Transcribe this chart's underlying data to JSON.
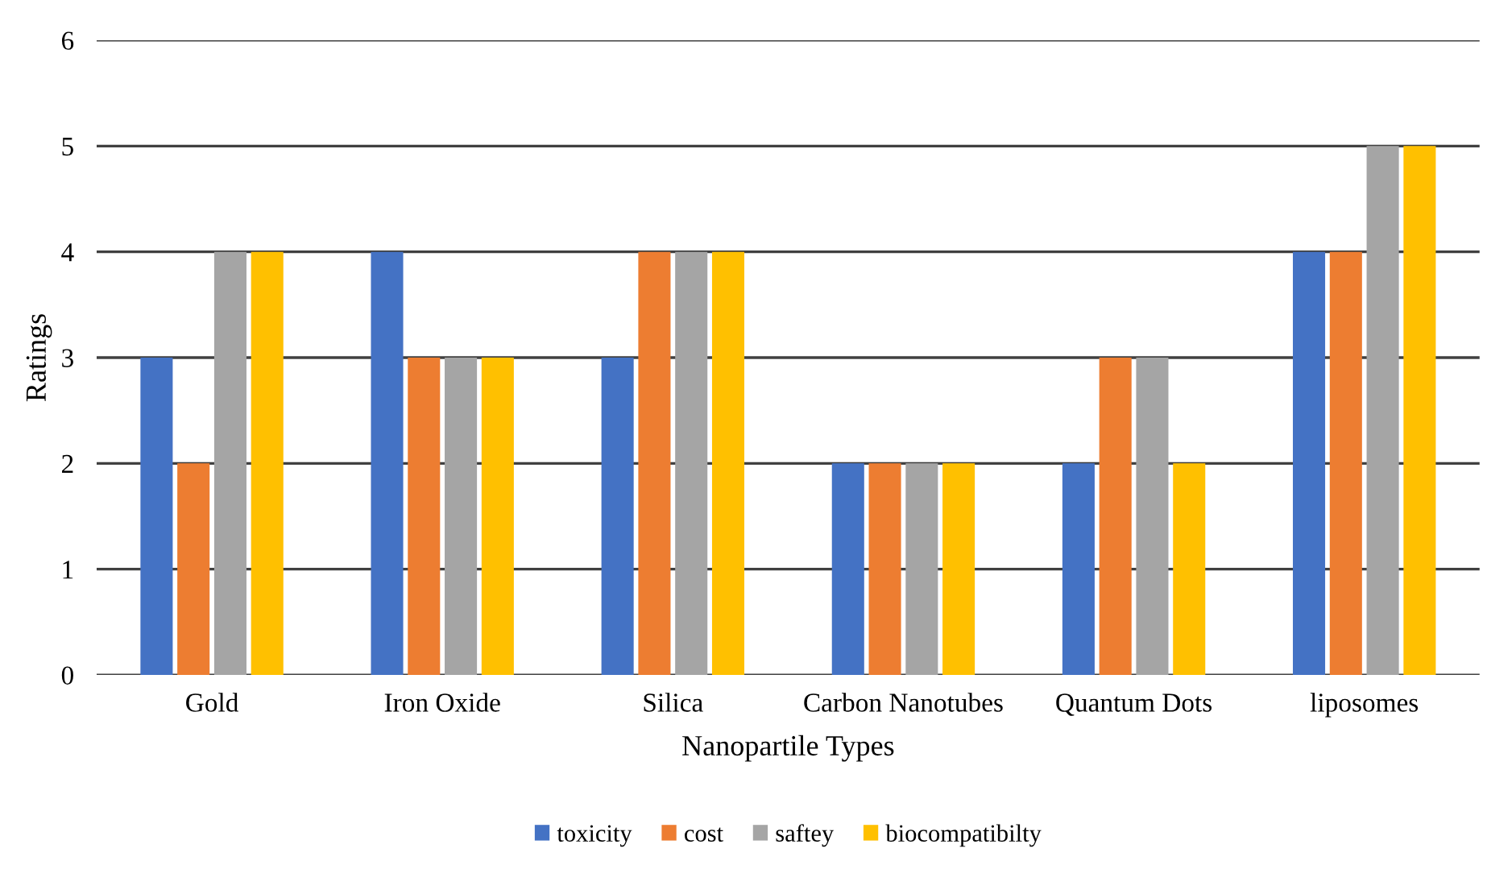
{
  "chart_data": {
    "type": "bar",
    "xlabel": "Nanopartile Types",
    "ylabel": "Ratings",
    "categories": [
      "Gold",
      "Iron Oxide",
      "Silica",
      "Carbon Nanotubes",
      "Quantum Dots",
      "liposomes"
    ],
    "series": [
      {
        "name": "toxicity",
        "color": "#4472c4",
        "values": [
          3,
          4,
          3,
          2,
          2,
          4
        ]
      },
      {
        "name": "cost",
        "color": "#ed7d31",
        "values": [
          2,
          3,
          4,
          2,
          3,
          4
        ]
      },
      {
        "name": "saftey",
        "color": "#a5a5a5",
        "values": [
          4,
          3,
          4,
          2,
          3,
          5
        ]
      },
      {
        "name": "biocompatibilty",
        "color": "#ffc000",
        "values": [
          4,
          3,
          4,
          2,
          2,
          5
        ]
      }
    ],
    "ylim": [
      0,
      6
    ],
    "yticks": [
      0,
      1,
      2,
      3,
      4,
      5,
      6
    ],
    "grid": "y",
    "legend": "bottom"
  }
}
